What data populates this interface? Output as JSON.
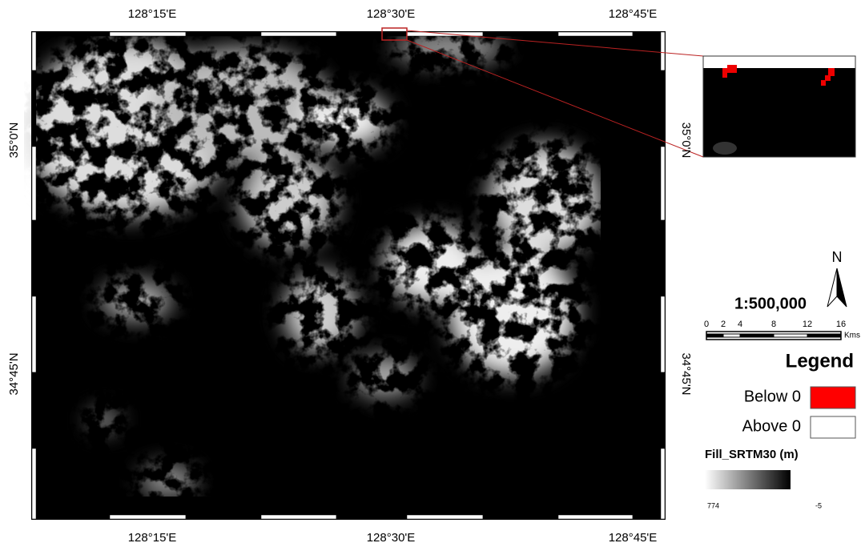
{
  "map": {
    "lon_labels_top": [
      "128°15'E",
      "128°30'E",
      "128°45'E"
    ],
    "lon_labels_bottom": [
      "128°15'E",
      "128°30'E",
      "128°45'E"
    ],
    "lat_labels_left": [
      "35°0'N",
      "34°45'N"
    ],
    "lat_labels_right": [
      "35°0'N",
      "34°45'N"
    ],
    "north": "N",
    "scale": "1:500,000",
    "scale_bar": {
      "ticks": [
        0,
        2,
        4,
        8,
        12,
        16
      ],
      "unit": "Kms"
    },
    "legend": {
      "title": "Legend",
      "items": [
        "Below 0",
        "Above 0"
      ]
    },
    "raster": {
      "title": "Fill_SRTM30 (m)",
      "high": "774",
      "low": "-5"
    }
  }
}
